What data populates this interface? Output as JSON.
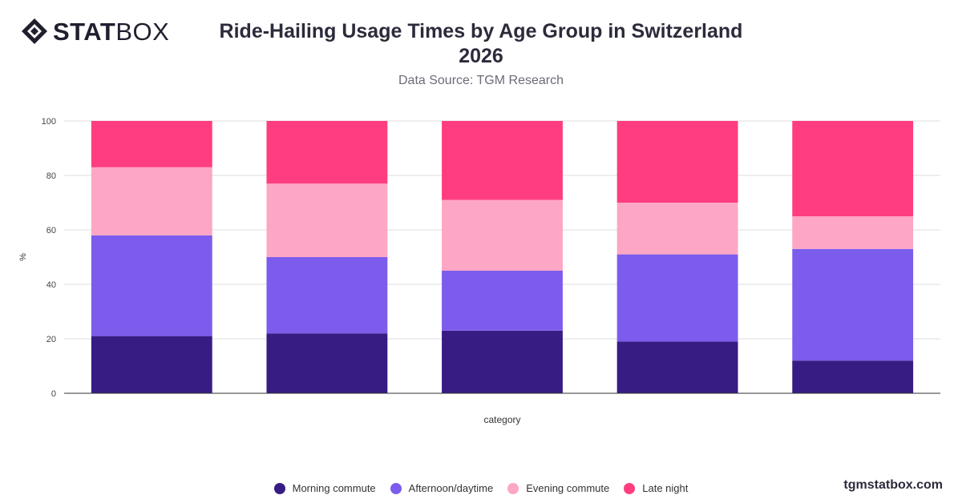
{
  "brand": {
    "logo_bold": "STAT",
    "logo_light": "BOX",
    "footer": "tgmstatbox.com"
  },
  "header": {
    "title_line1": "Ride-Hailing Usage Times by Age Group in Switzerland",
    "title_line2": "2026",
    "subtitle": "Data Source: TGM Research"
  },
  "chart_data": {
    "type": "bar",
    "stacked": true,
    "categories": [
      "",
      "",
      "",
      "",
      ""
    ],
    "xlabel": "category",
    "ylabel": "%",
    "ylim": [
      0,
      100
    ],
    "yticks": [
      0,
      20,
      40,
      60,
      80,
      100
    ],
    "grid": true,
    "legend_position": "bottom",
    "series": [
      {
        "name": "Morning commute",
        "color": "#371c83",
        "values": [
          21,
          22,
          23,
          19,
          12
        ]
      },
      {
        "name": "Afternoon/daytime",
        "color": "#7c5ced",
        "values": [
          37,
          28,
          22,
          32,
          41
        ]
      },
      {
        "name": "Evening commute",
        "color": "#fda6c6",
        "values": [
          25,
          27,
          26,
          19,
          12
        ]
      },
      {
        "name": "Late night",
        "color": "#ff3d80",
        "values": [
          17,
          23,
          29,
          30,
          35
        ]
      }
    ]
  }
}
